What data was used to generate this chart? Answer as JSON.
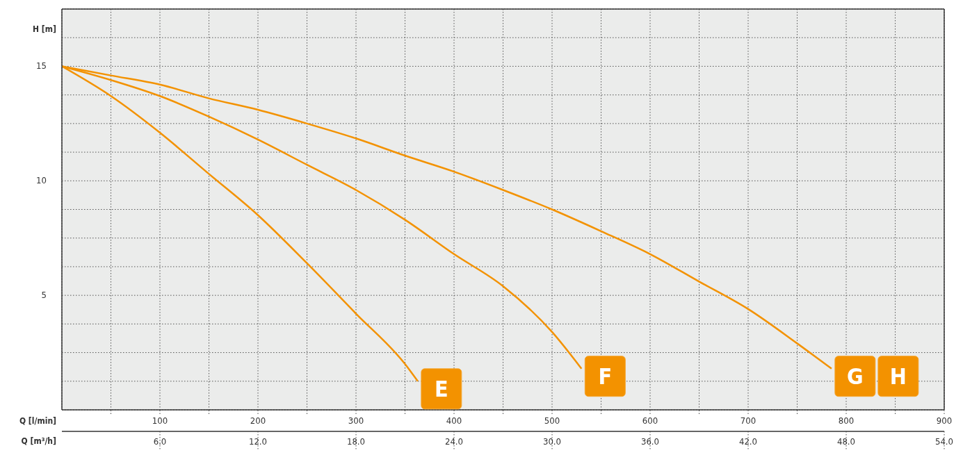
{
  "chart_data": {
    "type": "line",
    "xlabel": "Q [l/min]",
    "x2label": "Q [m³/h]",
    "ylabel": "H [m]",
    "xlim": [
      0,
      900
    ],
    "xticks": [
      {
        "value": 50,
        "label": null
      },
      100,
      {
        "value": 150,
        "label": null
      },
      200,
      {
        "value": 250,
        "label": null
      },
      300,
      {
        "value": 350,
        "label": null
      },
      400,
      {
        "value": 450,
        "label": null
      },
      500,
      {
        "value": 550,
        "label": null
      },
      600,
      {
        "value": 650,
        "label": null
      },
      700,
      {
        "value": 750,
        "label": null
      },
      800,
      {
        "value": 850,
        "label": null
      },
      900
    ],
    "x2lim": [
      0,
      54
    ],
    "x2ticks": [
      {
        "value": 6,
        "label": "6.0"
      },
      {
        "value": 12,
        "label": "12.0"
      },
      {
        "value": 18,
        "label": "18.0"
      },
      {
        "value": 24,
        "label": "24.0"
      },
      {
        "value": 30,
        "label": "30.0"
      },
      {
        "value": 36,
        "label": "36.0"
      },
      {
        "value": 42,
        "label": "42.0"
      },
      {
        "value": 48,
        "label": "48.0"
      },
      {
        "value": 54,
        "label": "54.0"
      }
    ],
    "ylim": [
      0,
      17.5
    ],
    "yticks": [
      {
        "value": 1.25,
        "label": null
      },
      {
        "value": 2.5,
        "label": null
      },
      {
        "value": 3.75,
        "label": null
      },
      5,
      {
        "value": 6.25,
        "label": null
      },
      {
        "value": 7.5,
        "label": null
      },
      {
        "value": 8.75,
        "label": null
      },
      10,
      {
        "value": 11.25,
        "label": null
      },
      {
        "value": 12.5,
        "label": null
      },
      {
        "value": 13.75,
        "label": null
      },
      15,
      {
        "value": 16.25,
        "label": null
      }
    ],
    "grid": true,
    "marker": "none",
    "line_style": "solid",
    "series": [
      {
        "name": "E",
        "color": "#f39200",
        "x": [
          0,
          50,
          100,
          150,
          200,
          250,
          300,
          350,
          363
        ],
        "values": [
          15,
          13.7,
          12.1,
          10.3,
          8.5,
          6.4,
          4.2,
          2.0,
          1.25
        ]
      },
      {
        "name": "F",
        "color": "#f39200",
        "x": [
          0,
          50,
          100,
          150,
          200,
          250,
          300,
          350,
          400,
          450,
          500,
          530
        ],
        "values": [
          15,
          14.4,
          13.7,
          12.8,
          11.8,
          10.7,
          9.6,
          8.3,
          6.8,
          5.4,
          3.4,
          1.8
        ]
      },
      {
        "name": "G",
        "color": "#f39200",
        "x": [
          0,
          50,
          100,
          150,
          200,
          250,
          300,
          350,
          400,
          450,
          500,
          550,
          600,
          650,
          700,
          750,
          785
        ],
        "values": [
          15,
          14.6,
          14.2,
          13.6,
          13.1,
          12.5,
          11.85,
          11.1,
          10.4,
          9.6,
          8.75,
          7.8,
          6.8,
          5.6,
          4.4,
          2.9,
          1.8
        ]
      }
    ],
    "annotations": [
      "H"
    ]
  }
}
